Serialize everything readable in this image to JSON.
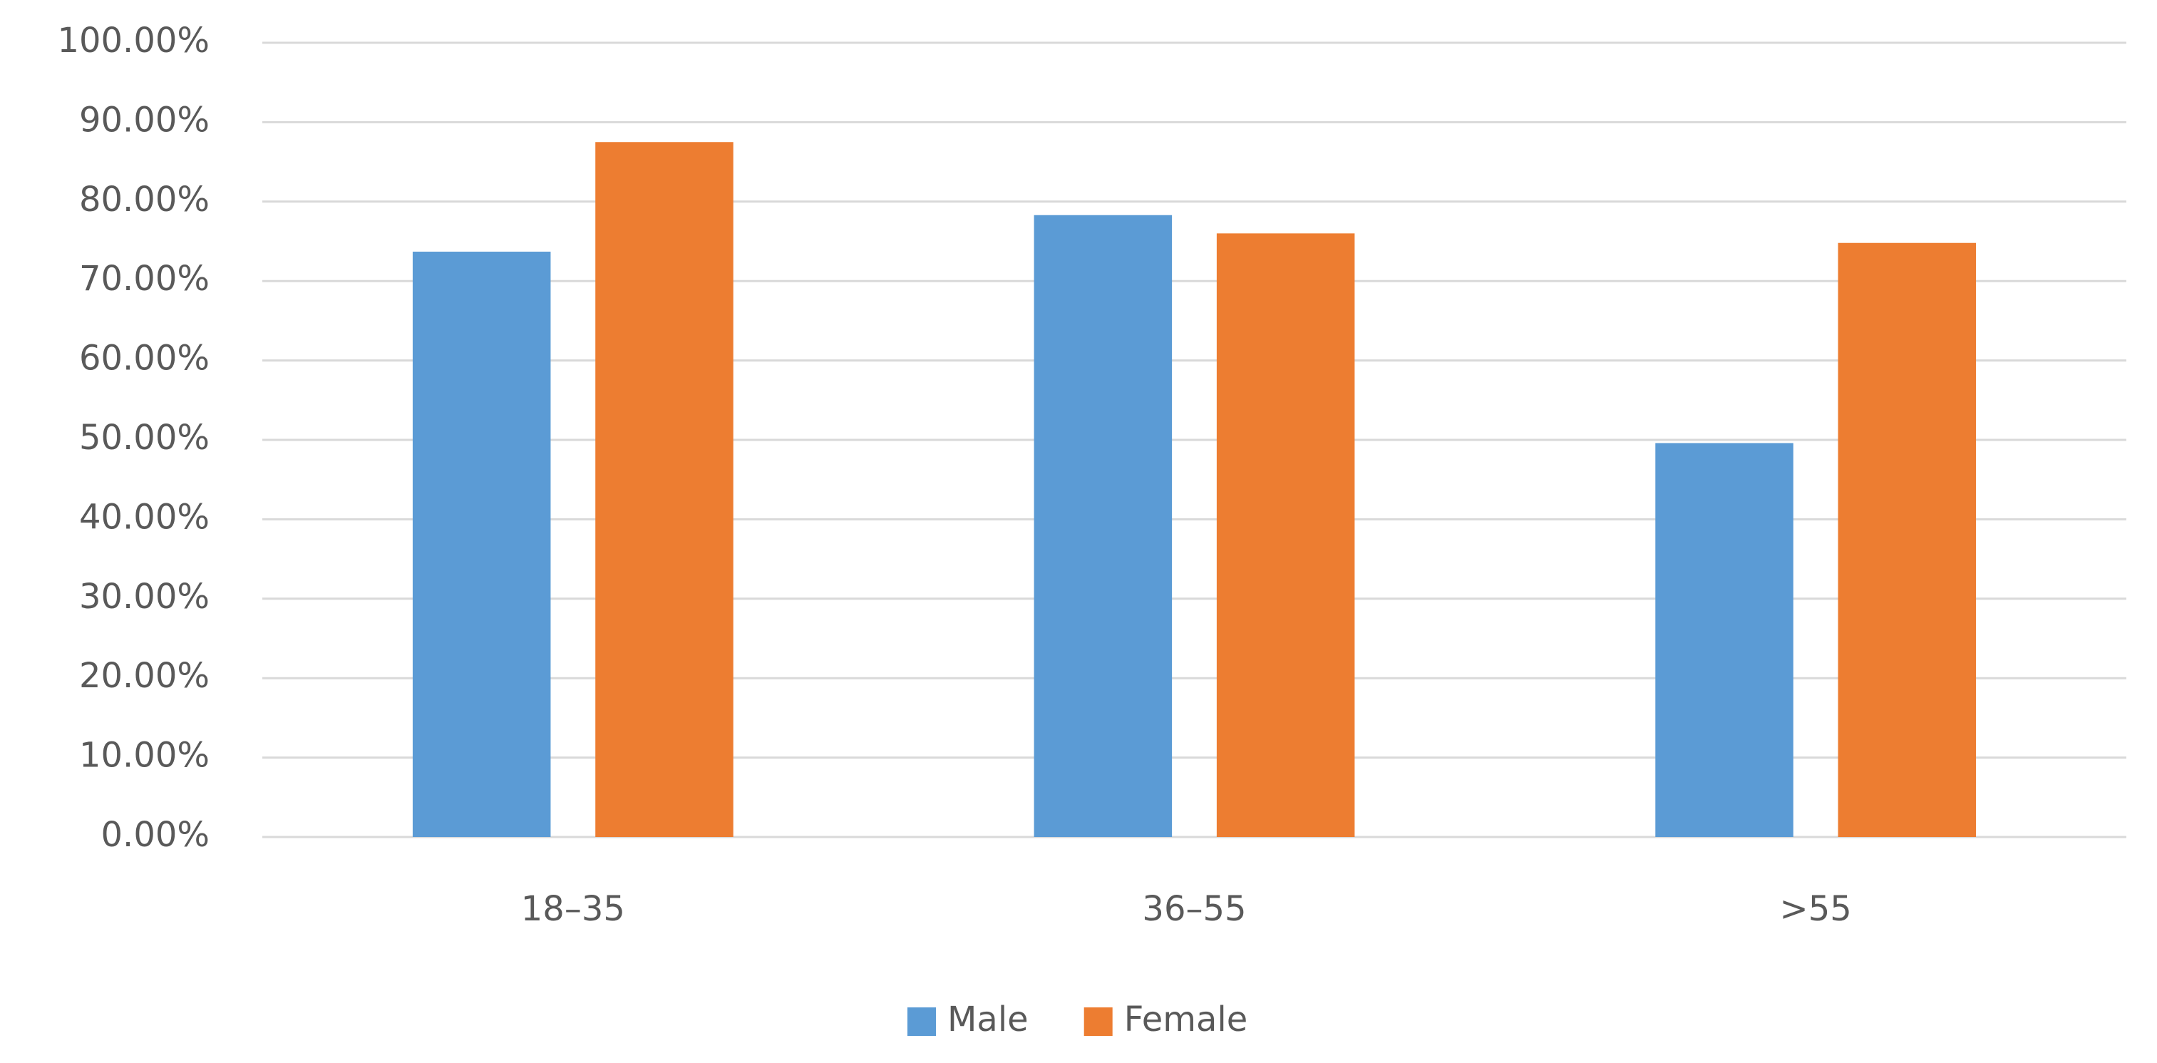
{
  "chart_data": {
    "type": "bar",
    "categories": [
      "18–35",
      "36–55",
      ">55"
    ],
    "series": [
      {
        "name": "Male",
        "color": "#5b9bd5",
        "values": [
          73.7,
          78.3,
          49.6
        ]
      },
      {
        "name": "Female",
        "color": "#ed7d31",
        "values": [
          87.5,
          76.0,
          74.8
        ]
      }
    ],
    "ylim": [
      0,
      100
    ],
    "yticks": [
      {
        "value": 0,
        "label": "0.00%"
      },
      {
        "value": 10,
        "label": "10.00%"
      },
      {
        "value": 20,
        "label": "20.00%"
      },
      {
        "value": 30,
        "label": "30.00%"
      },
      {
        "value": 40,
        "label": "40.00%"
      },
      {
        "value": 50,
        "label": "50.00%"
      },
      {
        "value": 60,
        "label": "60.00%"
      },
      {
        "value": 70,
        "label": "70.00%"
      },
      {
        "value": 80,
        "label": "80.00%"
      },
      {
        "value": 90,
        "label": "90.00%"
      },
      {
        "value": 100,
        "label": "100.00%"
      }
    ],
    "grid": true,
    "legend": "bottom"
  }
}
